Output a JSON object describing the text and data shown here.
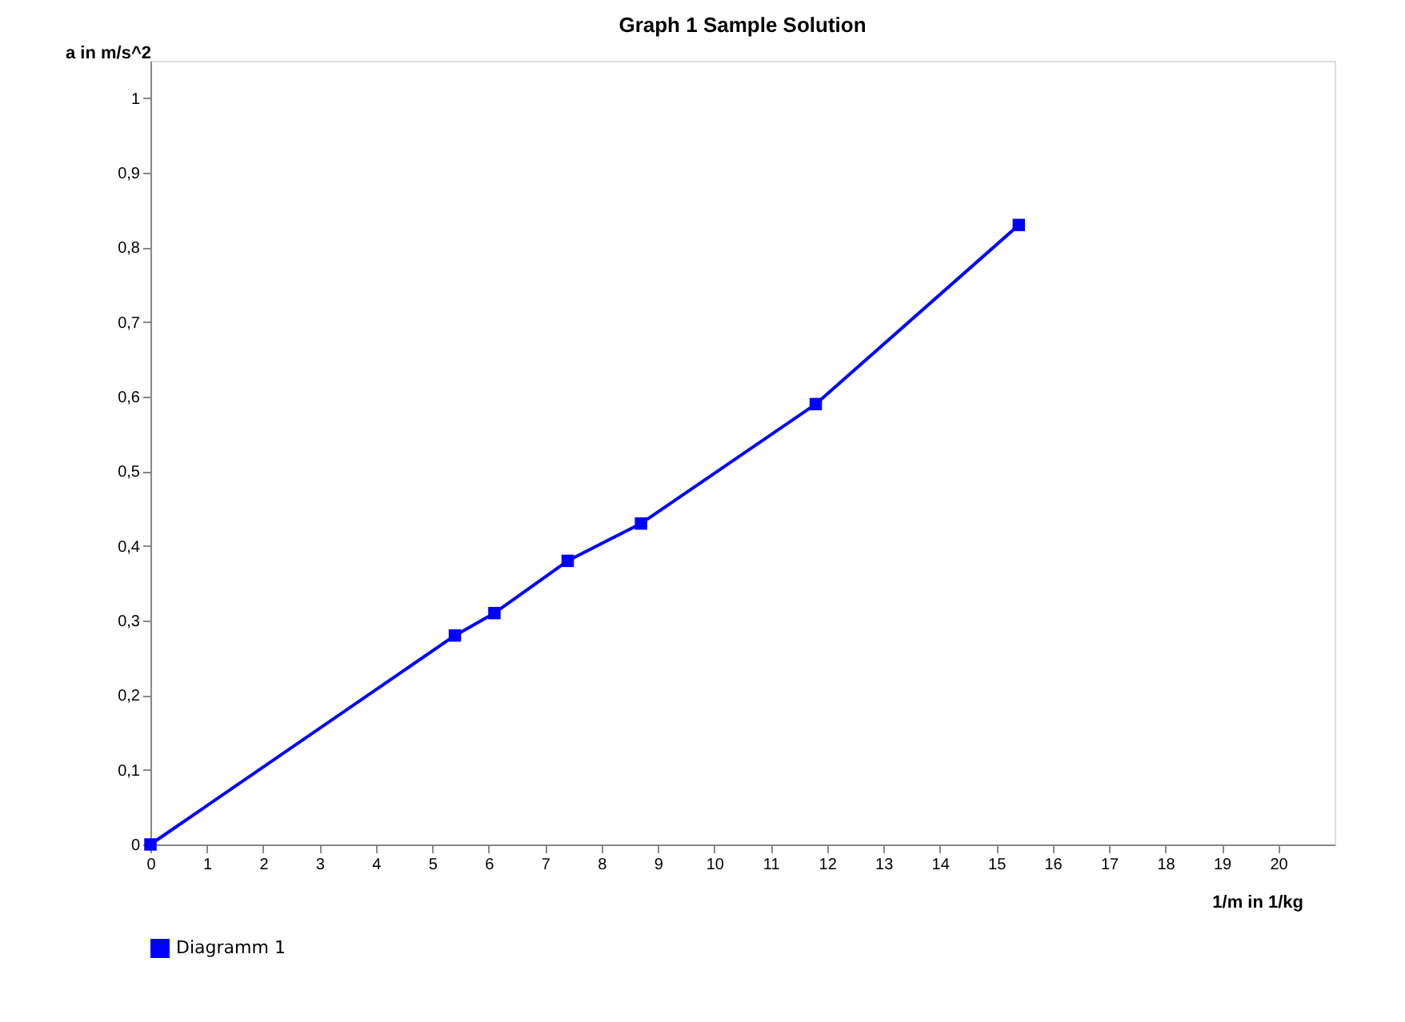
{
  "chart_data": {
    "type": "line",
    "title": "Graph 1 Sample Solution",
    "xlabel": "1/m in 1/kg",
    "ylabel": "a in m/s^2",
    "x": [
      0,
      5.4,
      6.1,
      7.4,
      8.7,
      11.8,
      15.4
    ],
    "series": [
      {
        "name": "Diagramm 1",
        "color": "#0000ff",
        "values": [
          0,
          0.28,
          0.31,
          0.38,
          0.43,
          0.59,
          0.83
        ]
      }
    ],
    "xlim": [
      0,
      21
    ],
    "xticks": [
      0,
      1,
      2,
      3,
      4,
      5,
      6,
      7,
      8,
      9,
      10,
      11,
      12,
      13,
      14,
      15,
      16,
      17,
      18,
      19,
      20
    ],
    "ylim": [
      0,
      1.05
    ],
    "yticks": [
      0,
      {
        "value": 0.1,
        "label": "0,1"
      },
      {
        "value": 0.2,
        "label": "0,2"
      },
      {
        "value": 0.3,
        "label": "0,3"
      },
      {
        "value": 0.4,
        "label": "0,4"
      },
      {
        "value": 0.5,
        "label": "0,5"
      },
      {
        "value": 0.6,
        "label": "0,6"
      },
      {
        "value": 0.7,
        "label": "0,7"
      },
      {
        "value": 0.8,
        "label": "0,8"
      },
      {
        "value": 0.9,
        "label": "0,9"
      },
      1
    ],
    "marker": "square",
    "line_style": "solid",
    "grid": false,
    "legend": "bottom"
  }
}
